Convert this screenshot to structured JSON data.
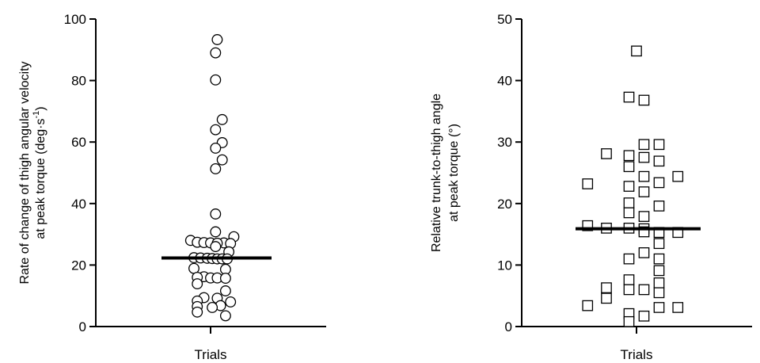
{
  "chart_data": [
    {
      "type": "scatter",
      "marker": "circle",
      "categories": [
        "Trials"
      ],
      "ylabel_line1": "Rate of change of thigh angular velocity",
      "ylabel_line2_prefix": "at peak torque (deg·s",
      "ylabel_line2_sup": "-1",
      "ylabel_line2_suffix": ")",
      "ylim": [
        0,
        100
      ],
      "yticks": [
        "0",
        "20",
        "40",
        "60",
        "80",
        "100"
      ],
      "grid": false,
      "mean_line": 22.3,
      "values": [
        93.3,
        89.0,
        80.2,
        67.3,
        64.0,
        59.8,
        58.0,
        54.2,
        51.3,
        36.6,
        30.8,
        29.2,
        28.0,
        27.4,
        27.3,
        27.2,
        27.2,
        27.1,
        27.0,
        26.0,
        24.3,
        22.4,
        22.3,
        22.2,
        22.1,
        22.0,
        22.0,
        22.0,
        18.9,
        18.6,
        16.2,
        16.0,
        15.8,
        15.8,
        15.7,
        13.9,
        11.6,
        9.4,
        9.2,
        8.3,
        8.0,
        6.8,
        6.5,
        6.2,
        4.7,
        3.5
      ],
      "jitter": [
        2,
        1.5,
        1.5,
        3.5,
        1.5,
        3.5,
        1.5,
        3.5,
        1.5,
        1.5,
        1.5,
        7,
        -6,
        -4,
        -2,
        0,
        4,
        2,
        6,
        1.5,
        5.5,
        -5,
        -3,
        -1,
        0.5,
        2,
        3.5,
        5,
        -5,
        4.5,
        -2,
        -4,
        0,
        2,
        4.5,
        -4,
        4.5,
        -2,
        2,
        -4,
        6,
        3,
        -4,
        0.5,
        -4,
        4.5
      ]
    },
    {
      "type": "scatter",
      "marker": "square",
      "categories": [
        "Trials"
      ],
      "ylabel_line1": "Relative trunk-to-thigh angle",
      "ylabel_line2": "at peak torque (°)",
      "ylim": [
        0,
        50
      ],
      "yticks": [
        "0",
        "10",
        "20",
        "30",
        "40",
        "50"
      ],
      "grid": false,
      "mean_line": 15.9,
      "values": [
        44.8,
        37.3,
        36.8,
        29.6,
        29.6,
        28.1,
        27.8,
        27.5,
        26.9,
        26.0,
        24.4,
        24.4,
        23.4,
        23.2,
        22.8,
        21.9,
        20.1,
        19.6,
        18.5,
        17.9,
        16.4,
        16.0,
        16.0,
        15.9,
        15.4,
        15.3,
        15.3,
        13.5,
        12.0,
        11.0,
        11.0,
        9.1,
        7.6,
        7.1,
        6.3,
        6.0,
        6.0,
        5.5,
        4.6,
        3.4,
        3.1,
        3.1,
        2.1,
        1.7,
        0.8
      ],
      "jitter": [
        0,
        -1,
        1,
        1,
        3,
        -4,
        -1,
        1,
        3,
        -1,
        1,
        5.5,
        3,
        -6.5,
        -1,
        1,
        -1,
        3,
        -1,
        1,
        -6.5,
        -4,
        -1,
        1,
        1,
        5.5,
        3,
        3,
        1,
        -1,
        3,
        3,
        -1,
        3,
        -4,
        -1,
        1,
        3,
        -4,
        -6.5,
        3,
        5.5,
        -1,
        1,
        -1
      ]
    }
  ]
}
